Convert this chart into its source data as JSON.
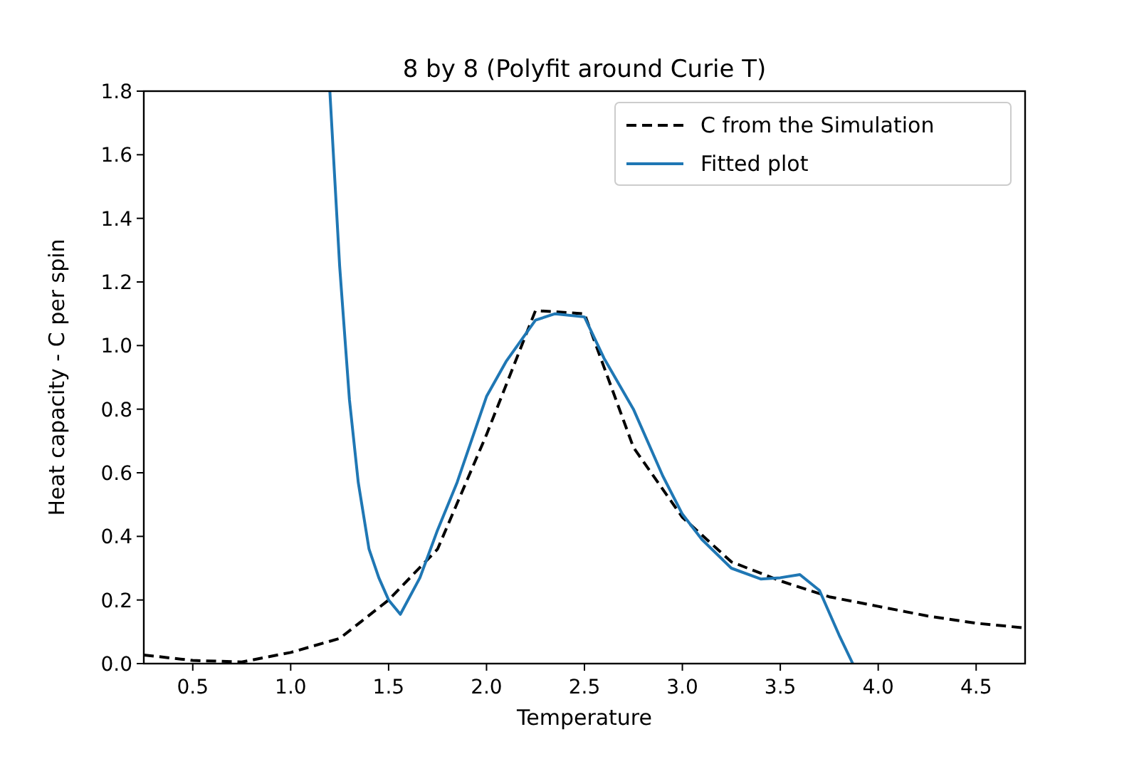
{
  "chart_data": {
    "type": "line",
    "title": "8 by 8 (Polyfit around Curie T)",
    "xlabel": "Temperature",
    "ylabel": "Heat capacity - C per spin",
    "xlim": [
      0.25,
      4.75
    ],
    "xticks": [
      0.5,
      {
        "value": 1,
        "label": "1.0"
      },
      1.5,
      {
        "value": 2,
        "label": "2.0"
      },
      2.5,
      {
        "value": 3,
        "label": "3.0"
      },
      3.5,
      {
        "value": 4,
        "label": "4.0"
      },
      4.5
    ],
    "ylim": [
      0,
      1.8
    ],
    "yticks": [
      {
        "value": 0,
        "label": "0.0"
      },
      0.2,
      0.4,
      0.6,
      0.8,
      {
        "value": 1,
        "label": "1.0"
      },
      1.2,
      1.4,
      1.6,
      1.8
    ],
    "grid": false,
    "legend": "top right",
    "marker": "none",
    "series": [
      {
        "name": "C from the Simulation",
        "color": "#000000",
        "line_style": "dashed",
        "x": [
          0.25,
          0.5,
          0.75,
          1.0,
          1.25,
          1.5,
          1.75,
          2.0,
          2.25,
          2.5,
          2.75,
          3.0,
          3.25,
          3.5,
          3.75,
          4.0,
          4.25,
          4.5,
          4.75
        ],
        "values": [
          0.027,
          0.01,
          0.005,
          0.035,
          0.079,
          0.2,
          0.36,
          0.72,
          1.11,
          1.1,
          0.68,
          0.46,
          0.32,
          0.26,
          0.21,
          0.18,
          0.15,
          0.127,
          0.112
        ]
      },
      {
        "name": "Fitted plot",
        "color": "#1f77b4",
        "line_style": "solid",
        "x": [
          1.2,
          1.25,
          1.3,
          1.345,
          1.4,
          1.45,
          1.5,
          1.56,
          1.66,
          1.75,
          1.85,
          2.0,
          2.1,
          2.25,
          2.35,
          2.5,
          2.6,
          2.75,
          2.9,
          3.0,
          3.1,
          3.25,
          3.4,
          3.5,
          3.6,
          3.7,
          3.8,
          3.87
        ],
        "values": [
          1.8,
          1.25,
          0.83,
          0.57,
          0.36,
          0.27,
          0.2,
          0.155,
          0.27,
          0.42,
          0.57,
          0.84,
          0.95,
          1.08,
          1.1,
          1.09,
          0.96,
          0.8,
          0.59,
          0.47,
          0.39,
          0.3,
          0.266,
          0.27,
          0.28,
          0.23,
          0.09,
          0.0
        ]
      }
    ]
  }
}
